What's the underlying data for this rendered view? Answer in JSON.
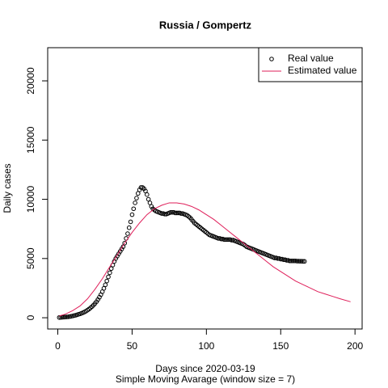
{
  "chart_data": {
    "type": "scatter-line",
    "title": "Russia / Gompertz",
    "xlabel": "Days since 2020-03-19",
    "subtitle": "Simple Moving Avarage (window size = 7)",
    "ylabel": "Daily cases",
    "xlim": [
      -6.8,
      204.8
    ],
    "xticks": [
      0,
      50,
      100,
      150,
      200
    ],
    "ylim": [
      -950,
      22800
    ],
    "yticks": [
      0,
      5000,
      10000,
      15000,
      20000
    ],
    "legend": "top-right",
    "series": [
      {
        "name": "Real value",
        "color": "#000000",
        "style": "points",
        "x": [
          1,
          2,
          3,
          4,
          5,
          6,
          7,
          8,
          9,
          10,
          11,
          12,
          13,
          14,
          15,
          16,
          17,
          18,
          19,
          20,
          21,
          22,
          23,
          24,
          25,
          26,
          27,
          28,
          29,
          30,
          31,
          32,
          33,
          34,
          35,
          36,
          37,
          38,
          39,
          40,
          41,
          42,
          43,
          44,
          45,
          46,
          47,
          48,
          49,
          50,
          51,
          52,
          53,
          54,
          55,
          56,
          57,
          58,
          59,
          60,
          61,
          62,
          63,
          64,
          65,
          66,
          67,
          68,
          69,
          70,
          71,
          72,
          73,
          74,
          75,
          76,
          77,
          78,
          79,
          80,
          81,
          82,
          83,
          84,
          85,
          86,
          87,
          88,
          89,
          90,
          91,
          92,
          93,
          94,
          95,
          96,
          97,
          98,
          99,
          100,
          101,
          102,
          103,
          104,
          105,
          106,
          107,
          108,
          109,
          110,
          111,
          112,
          113,
          114,
          115,
          116,
          117,
          118,
          119,
          120,
          121,
          122,
          123,
          124,
          125,
          126,
          127,
          128,
          129,
          130,
          131,
          132,
          133,
          134,
          135,
          136,
          137,
          138,
          139,
          140,
          141,
          142,
          143,
          144,
          145,
          146,
          147,
          148,
          149,
          150,
          151,
          152,
          153,
          154,
          155,
          156,
          157,
          158,
          159,
          160,
          161,
          162,
          163,
          164,
          165,
          166
        ],
        "values": [
          20,
          30,
          40,
          50,
          60,
          70,
          80,
          100,
          120,
          150,
          180,
          210,
          250,
          290,
          330,
          380,
          430,
          490,
          560,
          640,
          730,
          830,
          940,
          1060,
          1200,
          1350,
          1530,
          1730,
          1950,
          2200,
          2480,
          2780,
          3100,
          3450,
          3800,
          4150,
          4450,
          4750,
          5000,
          5200,
          5400,
          5600,
          5800,
          6000,
          6300,
          6700,
          7100,
          7600,
          8100,
          8700,
          9200,
          9700,
          10100,
          10500,
          10800,
          11000,
          11000,
          10900,
          10700,
          10400,
          10000,
          9700,
          9400,
          9200,
          9100,
          9000,
          8950,
          8900,
          8850,
          8800,
          8800,
          8750,
          8750,
          8800,
          8850,
          8900,
          8900,
          8900,
          8850,
          8850,
          8850,
          8850,
          8800,
          8800,
          8750,
          8700,
          8650,
          8550,
          8450,
          8300,
          8150,
          8000,
          7900,
          7800,
          7700,
          7600,
          7500,
          7400,
          7300,
          7200,
          7100,
          7000,
          6950,
          6900,
          6850,
          6800,
          6750,
          6700,
          6700,
          6650,
          6650,
          6600,
          6600,
          6600,
          6600,
          6600,
          6550,
          6550,
          6500,
          6450,
          6400,
          6350,
          6300,
          6250,
          6200,
          6100,
          6000,
          5950,
          5900,
          5850,
          5800,
          5750,
          5700,
          5650,
          5600,
          5550,
          5500,
          5450,
          5400,
          5350,
          5300,
          5250,
          5200,
          5150,
          5100,
          5050,
          5050,
          5000,
          5000,
          4950,
          4950,
          4900,
          4900,
          4850,
          4850,
          4800,
          4800,
          4800,
          4800,
          4800,
          4780,
          4780,
          4770,
          4770,
          4760,
          4760
        ]
      },
      {
        "name": "Estimated value",
        "color": "#df1f5a",
        "style": "line",
        "x": [
          1,
          5,
          10,
          15,
          20,
          25,
          30,
          35,
          40,
          45,
          50,
          55,
          60,
          65,
          70,
          75,
          80,
          85,
          90,
          95,
          100,
          105,
          110,
          115,
          120,
          125,
          130,
          135,
          140,
          145,
          150,
          155,
          160,
          165,
          170,
          175,
          180,
          185,
          190,
          197
        ],
        "values": [
          150,
          300,
          600,
          1000,
          1600,
          2400,
          3300,
          4300,
          5300,
          6300,
          7200,
          8000,
          8700,
          9200,
          9500,
          9700,
          9700,
          9600,
          9400,
          9100,
          8700,
          8300,
          7800,
          7300,
          6800,
          6300,
          5800,
          5300,
          4800,
          4300,
          3900,
          3500,
          3100,
          2800,
          2500,
          2200,
          2000,
          1800,
          1600,
          1350
        ]
      }
    ]
  }
}
